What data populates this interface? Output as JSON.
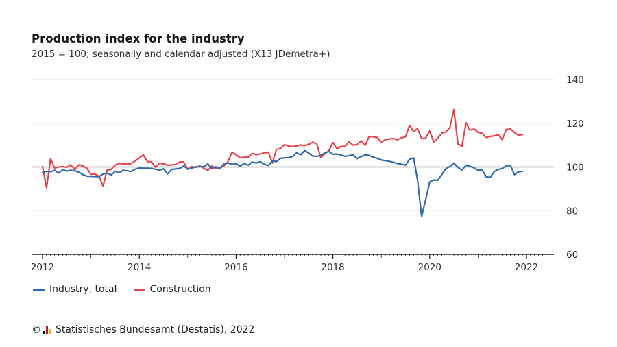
{
  "title": "Production index for the industry",
  "subtitle": "2015 = 100; seasonally and calendar adjusted (X13 JDemetra+)",
  "source": {
    "prefix": "©",
    "text": "Statistisches Bundesamt (Destatis), 2022"
  },
  "colors": {
    "industry": "#2e6aab",
    "construction": "#e8434b",
    "grid": "#dddddd",
    "baseline": "#333333"
  },
  "chart_data": {
    "type": "line",
    "title": "Production index for the industry",
    "subtitle": "2015 = 100; seasonally and calendar adjusted (X13 JDemetra+)",
    "xlabel": "",
    "ylabel": "",
    "x_start": "2012-01",
    "frequency": "monthly",
    "xlim": [
      "2012-01",
      "2022-05"
    ],
    "ylim": [
      60,
      140
    ],
    "y_ticks": [
      60,
      80,
      100,
      120,
      140
    ],
    "x_ticks": [
      "2012",
      "2014",
      "2016",
      "2018",
      "2020",
      "2022"
    ],
    "reference_line": 100,
    "grid": "horizontal",
    "legend_position": "bottom-left",
    "series": [
      {
        "name": "Industry, total",
        "color": "#2e6aab",
        "values": [
          97.5,
          98.0,
          97.8,
          98.5,
          97.2,
          98.8,
          98.1,
          98.5,
          98.3,
          97.6,
          96.5,
          95.8,
          95.7,
          95.6,
          95.5,
          96.8,
          97.2,
          96.3,
          98.0,
          97.3,
          98.5,
          98.2,
          97.9,
          99.0,
          99.5,
          99.4,
          99.4,
          99.3,
          99.0,
          98.5,
          99.2,
          96.8,
          98.9,
          99.1,
          99.3,
          100.5,
          99.0,
          99.5,
          100.0,
          100.2,
          100.1,
          101.4,
          99.3,
          100.1,
          99.2,
          101.5,
          101.8,
          101.2,
          101.5,
          100.3,
          101.7,
          100.8,
          102.3,
          101.8,
          102.4,
          101.2,
          100.7,
          102.9,
          102.4,
          104.0,
          104.2,
          104.3,
          104.8,
          106.5,
          105.6,
          107.5,
          106.4,
          105.0,
          104.9,
          105.3,
          106.4,
          107.1,
          105.8,
          106.0,
          105.5,
          104.9,
          105.2,
          105.6,
          103.8,
          104.8,
          105.5,
          105.3,
          104.5,
          104.0,
          103.2,
          102.9,
          102.6,
          102.1,
          101.6,
          101.3,
          100.8,
          103.5,
          104.2,
          94.0,
          77.4,
          85.0,
          93.2,
          94.0,
          93.9,
          96.5,
          99.2,
          100.2,
          101.8,
          99.8,
          98.6,
          100.8,
          100.3,
          99.6,
          98.5,
          98.6,
          95.5,
          95.2,
          97.9,
          98.8,
          99.3,
          100.5,
          100.8,
          96.5,
          97.8,
          98.0
        ]
      },
      {
        "name": "Construction",
        "color": "#e8434b",
        "values": [
          100.2,
          90.5,
          103.8,
          99.5,
          100.0,
          100.2,
          99.8,
          101.0,
          98.8,
          101.0,
          100.5,
          99.4,
          96.6,
          96.8,
          95.8,
          91.2,
          98.5,
          98.9,
          100.8,
          101.7,
          101.4,
          101.3,
          101.6,
          102.8,
          104.1,
          105.6,
          102.4,
          102.4,
          99.9,
          101.7,
          101.5,
          100.8,
          100.9,
          101.2,
          102.3,
          102.3,
          98.9,
          100.2,
          99.8,
          100.5,
          99.4,
          98.4,
          100.5,
          99.2,
          99.6,
          100.5,
          102.5,
          106.8,
          105.6,
          104.2,
          104.5,
          104.5,
          106.2,
          105.6,
          106.0,
          106.5,
          106.8,
          101.8,
          108.0,
          108.5,
          110.2,
          109.6,
          109.3,
          109.6,
          110.1,
          109.8,
          110.3,
          111.4,
          110.5,
          104.3,
          106.0,
          107.5,
          111.2,
          108.3,
          109.4,
          109.4,
          111.5,
          110.0,
          110.2,
          112.0,
          109.9,
          114.0,
          113.8,
          113.5,
          111.4,
          112.5,
          112.8,
          113.0,
          112.5,
          113.3,
          113.8,
          119.0,
          116.2,
          117.6,
          113.0,
          113.2,
          116.5,
          111.4,
          113.2,
          115.5,
          116.0,
          118.0,
          126.3,
          110.5,
          109.5,
          120.2,
          116.8,
          117.4,
          115.8,
          115.4,
          113.5,
          114.0,
          114.2,
          114.8,
          112.5,
          117.2,
          117.4,
          115.8,
          114.5,
          114.8
        ]
      }
    ]
  }
}
